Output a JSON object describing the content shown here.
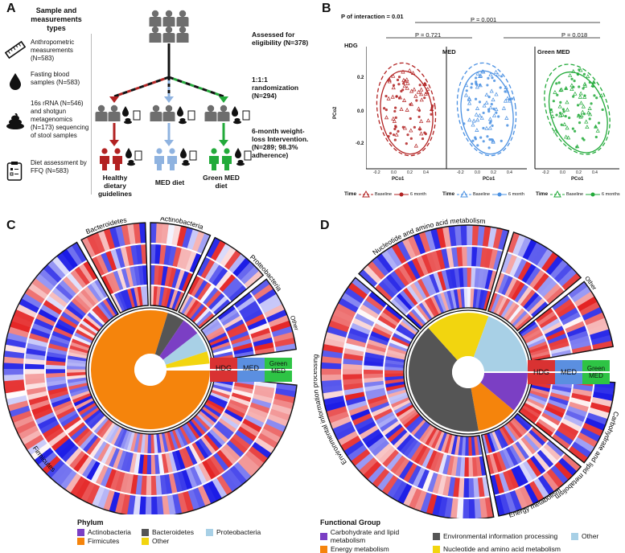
{
  "panelA": {
    "letter": "A",
    "header": "Sample and measurements types",
    "measurements": [
      {
        "icon": "ruler-icon",
        "text": "Anthropometric measurements (N=583)"
      },
      {
        "icon": "blood-drop-icon",
        "text": "Fasting blood samples (N=583)"
      },
      {
        "icon": "stool-icon",
        "text": "16s rRNA (N=546) and shotgun metagenomics (N=173) sequencing of stool samples"
      },
      {
        "icon": "ffq-clipboard-icon",
        "text": "Diet assessment by FFQ (N=583)"
      }
    ],
    "flow": [
      "Assessed for eligibility (N=378)",
      "1:1:1 randomization (N=294)",
      "6-month weight-loss Intervention. (N=289; 98.3% adherence)"
    ],
    "arms": [
      "Healthy dietary guidelines",
      "MED diet",
      "Green MED diet"
    ],
    "colors": {
      "hdg": "#b22222",
      "med": "#8fb3e0",
      "green": "#22aa3a",
      "gray": "#6e6e6e"
    }
  },
  "panelB": {
    "letter": "B",
    "interaction": "P of interaction = 0.01",
    "pvals": [
      "P = 0.001",
      "P = 0.721",
      "P = 0.018"
    ],
    "ylabel": "PCo2",
    "xlabel": "PCo1",
    "y_ticks": [
      "0.2",
      "0.0",
      "-0.2"
    ],
    "x_ticks": [
      "-0.2",
      "0.0",
      "0.2",
      "0.4"
    ],
    "panels": [
      {
        "name": "HDG",
        "color": "#b22222"
      },
      {
        "name": "MED",
        "color": "#4a90e2"
      },
      {
        "name": "Green MED",
        "color": "#22aa3a"
      }
    ],
    "legends": [
      {
        "title": "Time",
        "baseline": "Baseline",
        "end": "6 month",
        "color": "#b22222"
      },
      {
        "title": "Time",
        "baseline": "Baseline",
        "end": "6 month",
        "color": "#4a90e2"
      },
      {
        "title": "Time",
        "baseline": "Baseline",
        "end": "6 months",
        "color": "#22aa3a"
      }
    ]
  },
  "panelC": {
    "letter": "C",
    "group_labels": [
      "Bacteroidetes",
      "Actinobacteria",
      "Proteobacteria",
      "Other",
      "Firmicutes"
    ],
    "diet_labels": [
      "HDG",
      "MED",
      "Green MED"
    ],
    "legend_title": "Phylum",
    "legend": [
      {
        "label": "Actinobacteria",
        "color": "#7b3fc4"
      },
      {
        "label": "Bacteroidetes",
        "color": "#555555"
      },
      {
        "label": "Proteobacteria",
        "color": "#a8d0e6"
      },
      {
        "label": "Firmicutes",
        "color": "#f5840c"
      },
      {
        "label": "Other",
        "color": "#f2d50f"
      }
    ]
  },
  "panelD": {
    "letter": "D",
    "group_labels": [
      "Nucleotide and amino acid metabolism",
      "Other",
      "Carbohydrate and lipid metabolism",
      "Energy metabolism",
      "Environmental information processing"
    ],
    "diet_labels": [
      "HDG",
      "MED",
      "Green MED"
    ],
    "legend_title": "Functional Group",
    "legend": [
      {
        "label": "Carbohydrate and lipid metabolism",
        "color": "#7b3fc4"
      },
      {
        "label": "Environmental information processing",
        "color": "#555555"
      },
      {
        "label": "Other",
        "color": "#a8d0e6"
      },
      {
        "label": "Energy metabolism",
        "color": "#f5840c"
      },
      {
        "label": "Nucleotide and amino acid metabolism",
        "color": "#f2d50f"
      }
    ]
  }
}
